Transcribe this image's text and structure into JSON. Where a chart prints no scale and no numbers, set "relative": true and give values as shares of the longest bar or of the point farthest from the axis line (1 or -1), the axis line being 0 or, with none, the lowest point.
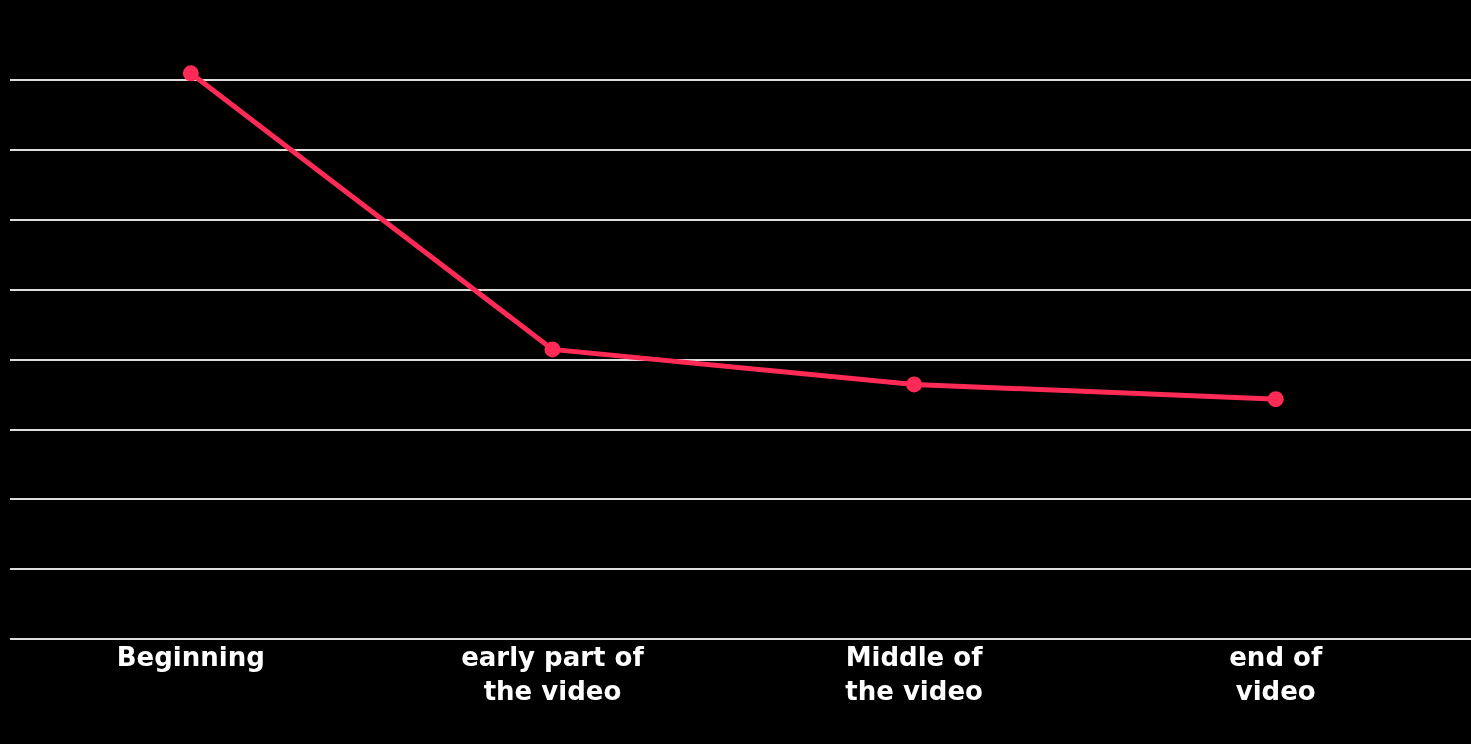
{
  "chart_data": {
    "type": "line",
    "relative": true,
    "categories": [
      "Beginning",
      "early part of the video",
      "Middle of the video",
      "end of video"
    ],
    "series": [
      {
        "color": "#ff2a55",
        "values": [
          1,
          0.512,
          0.45,
          0.424
        ]
      }
    ],
    "marker": "circle",
    "line_style": "solid",
    "grid": "y"
  }
}
